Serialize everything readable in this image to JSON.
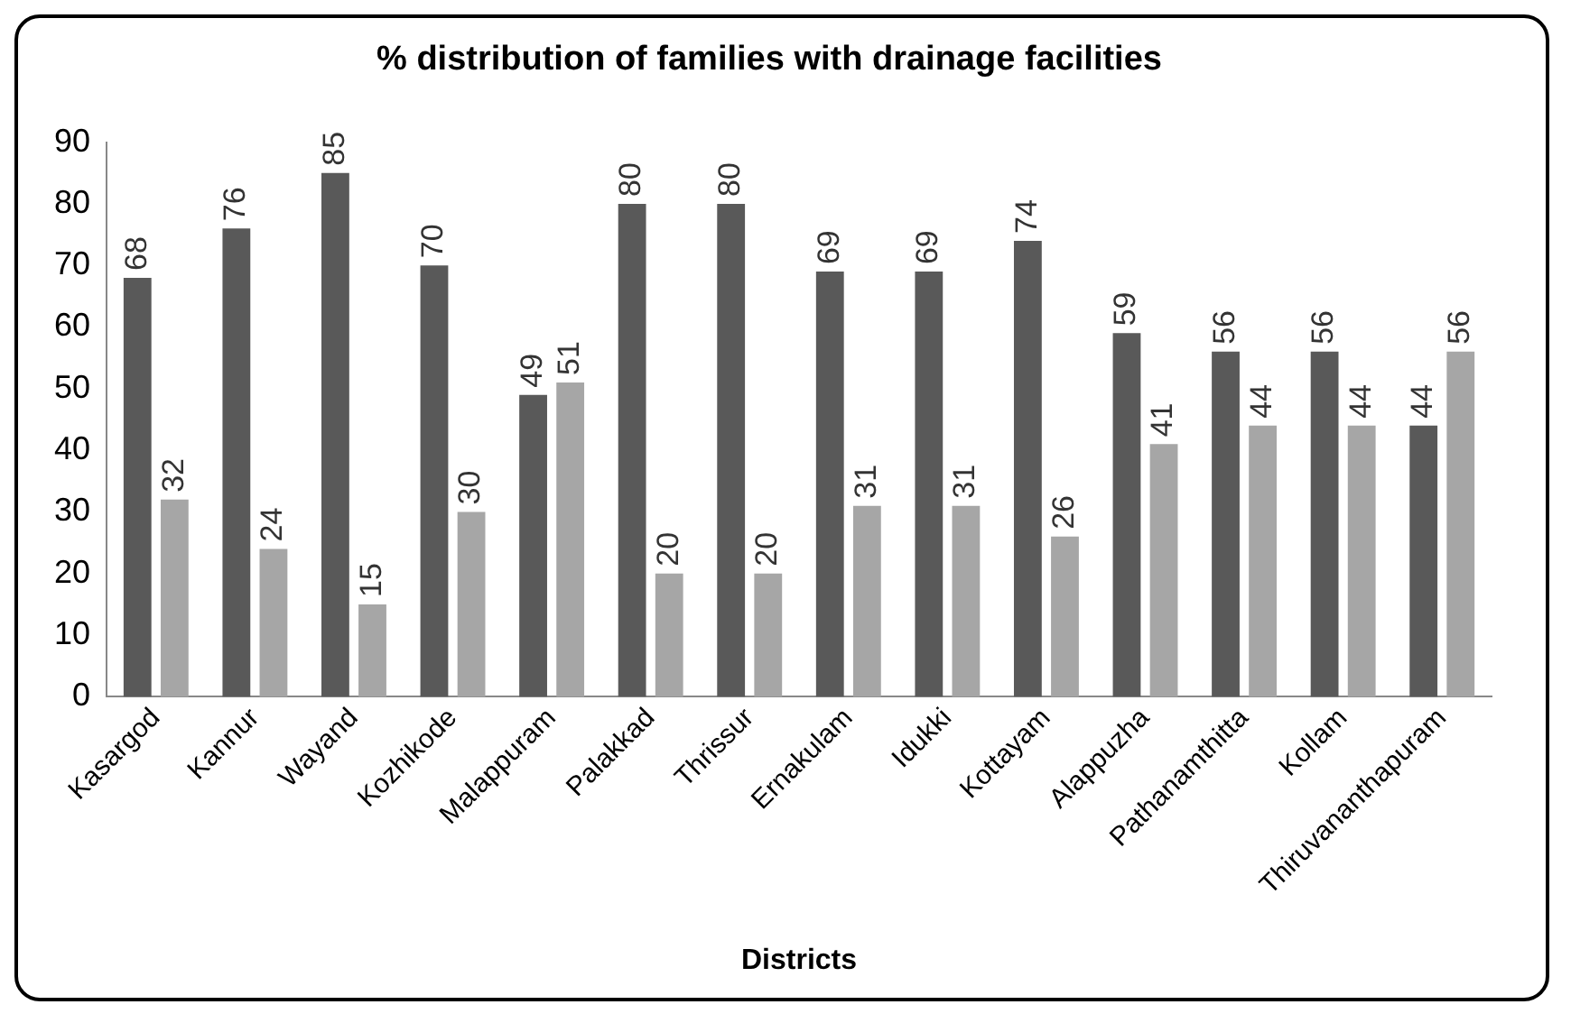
{
  "chart_data": {
    "type": "bar",
    "title": "% distribution of families with drainage facilities",
    "xlabel": "Districts",
    "categories": [
      "Kasargod",
      "Kannur",
      "Wayand",
      "Kozhikode",
      "Malappuram",
      "Palakkad",
      "Thrissur",
      "Ernakulam",
      "Idukki",
      "Kottayam",
      "Alappuzha",
      "Pathanamthitta",
      "Kollam",
      "Thiruvananthapuram"
    ],
    "series": [
      {
        "color": "#595959",
        "values": [
          68,
          76,
          85,
          70,
          49,
          80,
          80,
          69,
          69,
          74,
          59,
          56,
          56,
          44
        ]
      },
      {
        "color": "#a6a6a6",
        "values": [
          32,
          24,
          15,
          30,
          51,
          20,
          20,
          31,
          31,
          26,
          41,
          44,
          44,
          56
        ]
      }
    ],
    "ylim": [
      0,
      90
    ],
    "yticks": [
      0,
      10,
      20,
      30,
      40,
      50,
      60,
      70,
      80,
      90
    ],
    "grid": false,
    "legend": false,
    "data_labels": true
  }
}
